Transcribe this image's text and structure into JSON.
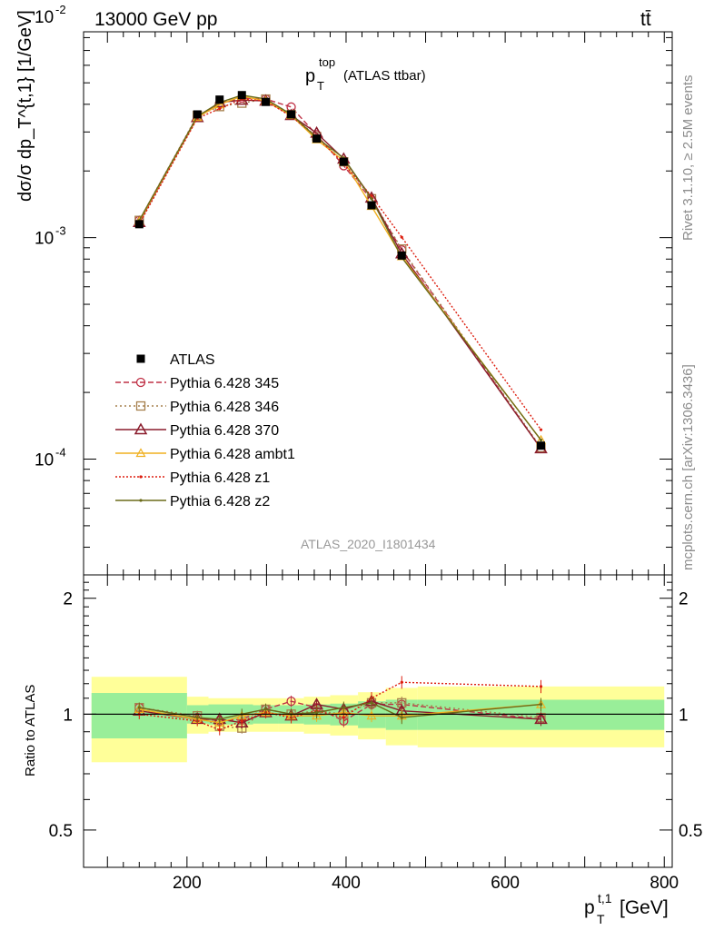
{
  "header": {
    "left": "13000 GeV pp",
    "right": "tt̄"
  },
  "title": {
    "main": "p",
    "sub": "T",
    "sup": "top",
    "rest": "(ATLAS ttbar)"
  },
  "side_labels": {
    "rivet": "Rivet 3.1.10, ≥ 2.5M events",
    "mcplots": "mcplots.cern.ch [arXiv:1306.3436]"
  },
  "watermark": "ATLAS_2020_I1801434",
  "axes": {
    "ylabel_main": "dσ/σ dp_T^{t,1} [1/GeV]",
    "ylabel_ratio": "Ratio to ATLAS",
    "xlabel": "p",
    "xlabel_sub": "T",
    "xlabel_sup": "t,1",
    "xlabel_unit": "[GeV]",
    "x_ticks": [
      "200",
      "400",
      "600",
      "800"
    ],
    "y_main_ticks": [
      "10",
      "10",
      "10"
    ],
    "y_main_exps": [
      "-4",
      "-3",
      "-2"
    ],
    "y_ratio_ticks": [
      "0.5",
      "1",
      "2"
    ]
  },
  "chart_data": {
    "type": "line",
    "x_scale": "linear",
    "y_scale": "log",
    "xlim": [
      70,
      810
    ],
    "ylim_main": [
      3e-05,
      0.0085
    ],
    "ylim_ratio": [
      0.4,
      2.3
    ],
    "ratio_scale": "log",
    "grid": false,
    "legend_position": "lower-left",
    "bins": [
      {
        "lo": 80,
        "hi": 200,
        "x": 140
      },
      {
        "lo": 200,
        "hi": 227,
        "x": 213
      },
      {
        "lo": 227,
        "hi": 255,
        "x": 241
      },
      {
        "lo": 255,
        "hi": 283,
        "x": 269
      },
      {
        "lo": 283,
        "hi": 315,
        "x": 299
      },
      {
        "lo": 315,
        "hi": 347,
        "x": 331
      },
      {
        "lo": 347,
        "hi": 380,
        "x": 363
      },
      {
        "lo": 380,
        "hi": 415,
        "x": 397
      },
      {
        "lo": 415,
        "hi": 450,
        "x": 432
      },
      {
        "lo": 450,
        "hi": 490,
        "x": 470
      },
      {
        "lo": 490,
        "hi": 800,
        "x": 645
      }
    ],
    "reference": {
      "name": "ATLAS",
      "values": [
        0.00115,
        0.0036,
        0.0042,
        0.0044,
        0.0041,
        0.0036,
        0.0028,
        0.0022,
        0.0014,
        0.00083,
        0.000115
      ],
      "band_inner": [
        0.135,
        0.055,
        0.06,
        0.06,
        0.055,
        0.055,
        0.06,
        0.065,
        0.08,
        0.09,
        0.09
      ],
      "band_outer": [
        0.25,
        0.11,
        0.1,
        0.1,
        0.1,
        0.1,
        0.11,
        0.12,
        0.14,
        0.17,
        0.18
      ]
    },
    "series": [
      {
        "name": "Pythia 6.428 345",
        "color": "#bf3045",
        "marker": "circle",
        "dash": "6,3",
        "ratio": [
          1.04,
          0.98,
          0.96,
          0.97,
          1.03,
          1.08,
          1.04,
          0.96,
          1.06,
          1.06,
          0.97
        ]
      },
      {
        "name": "Pythia 6.428 346",
        "color": "#a6804d",
        "marker": "square",
        "dash": "2,3",
        "ratio": [
          1.04,
          0.99,
          0.93,
          0.92,
          1.03,
          1.0,
          1.02,
          1.0,
          1.07,
          1.07,
          0.98
        ]
      },
      {
        "name": "Pythia 6.428 370",
        "color": "#8a1c2c",
        "marker": "triangle",
        "dash": "",
        "ratio": [
          1.02,
          0.97,
          0.97,
          0.95,
          1.01,
          0.99,
          1.06,
          1.03,
          1.08,
          1.02,
          0.97
        ]
      },
      {
        "name": "Pythia 6.428 ambt1",
        "color": "#f0b020",
        "marker": "triangle-small",
        "dash": "",
        "ratio": [
          1.03,
          0.97,
          0.95,
          0.99,
          1.01,
          0.99,
          0.99,
          1.01,
          0.99,
          0.99,
          1.06
        ]
      },
      {
        "name": "Pythia 6.428 z1",
        "color": "#dd1f10",
        "marker": "dot",
        "dash": "2,2",
        "ratio": [
          1.0,
          0.96,
          0.91,
          0.96,
          1.01,
          0.98,
          1.02,
          0.98,
          1.1,
          1.21,
          1.18
        ]
      },
      {
        "name": "Pythia 6.428 z2",
        "color": "#6b6b1a",
        "marker": "dot",
        "dash": "",
        "ratio": [
          1.04,
          0.98,
          0.97,
          1.0,
          1.03,
          1.0,
          1.01,
          1.04,
          1.07,
          0.98,
          1.06
        ]
      }
    ]
  }
}
